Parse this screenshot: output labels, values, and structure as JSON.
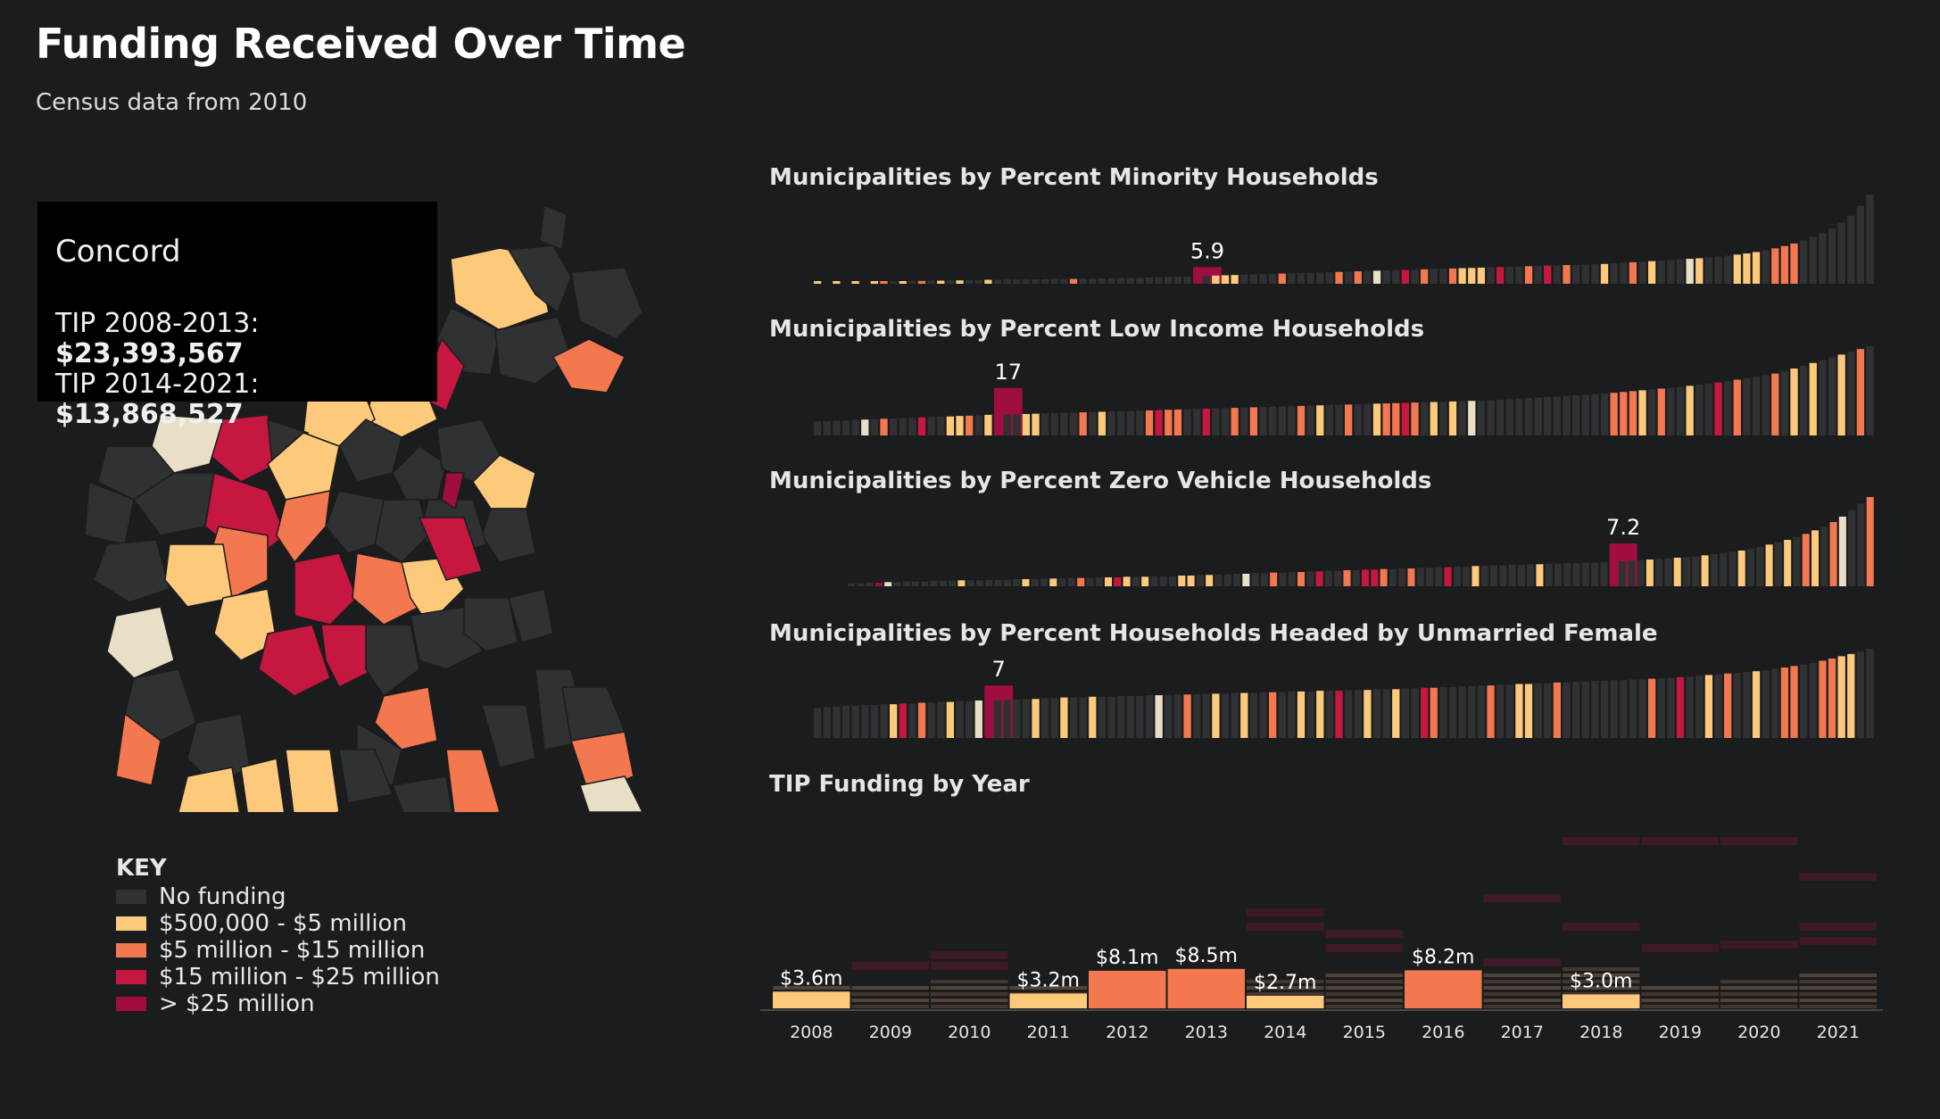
{
  "page": {
    "title": "Funding Received Over Time",
    "subtitle": "Census data from 2010"
  },
  "colors": {
    "background": "#1b1c1e",
    "no_funding": "#303133",
    "tier1": "#fdc97b",
    "tier2": "#f3774f",
    "tier3": "#c5173f",
    "tier4": "#9f0d42",
    "light": "#e9dec6"
  },
  "tooltip": {
    "town": "Concord",
    "line1_label": "TIP 2008-2013:",
    "line1_value": "$23,393,567",
    "line2_label": "TIP 2014-2021:",
    "line2_value": "$13,868,527"
  },
  "key": {
    "title": "KEY",
    "items": [
      {
        "label": "No funding",
        "color": "#303133"
      },
      {
        "label": "$500,000 - $5 million",
        "color": "#fdc97b"
      },
      {
        "label": "$5 million - $15 million",
        "color": "#f3774f"
      },
      {
        "label": "$15 million - $25 million",
        "color": "#c5173f"
      },
      {
        "label": "> $25 million",
        "color": "#9f0d42"
      }
    ]
  },
  "chart_data": [
    {
      "type": "bar",
      "title": "Municipalities by Percent Minority Households",
      "highlight_label": "5.9",
      "values": [
        0.5,
        0,
        0.6,
        0,
        0.7,
        0,
        0.8,
        0.7,
        0.9,
        0.9,
        1.0,
        1.0,
        1.1,
        1.1,
        1.2,
        1.2,
        1.3,
        1.3,
        1.4,
        1.4,
        1.5,
        1.5,
        1.5,
        1.6,
        1.6,
        1.7,
        1.7,
        1.7,
        1.8,
        1.8,
        1.9,
        1.9,
        2.0,
        2.0,
        2.1,
        2.2,
        2.3,
        2.4,
        2.5,
        2.6,
        5.9,
        2.8,
        2.9,
        3.0,
        3.1,
        3.2,
        3.3,
        3.4,
        3.5,
        3.6,
        3.7,
        3.8,
        3.9,
        4.0,
        4.1,
        4.2,
        4.3,
        4.4,
        4.5,
        4.6,
        4.7,
        4.8,
        4.9,
        5.0,
        5.1,
        5.2,
        5.3,
        5.4,
        5.5,
        5.6,
        5.7,
        5.8,
        5.9,
        6.0,
        6.1,
        6.2,
        6.3,
        6.4,
        6.5,
        6.6,
        6.7,
        6.8,
        6.9,
        7.0,
        7.2,
        7.4,
        7.6,
        7.8,
        8.0,
        8.2,
        8.4,
        8.6,
        8.8,
        9.0,
        9.3,
        9.6,
        9.9,
        10.3,
        10.7,
        11.2,
        11.8,
        12.5,
        13.3,
        14.2,
        15.3,
        16.5,
        17.9,
        19.5,
        21.5,
        24.0,
        27.5,
        31.5
      ],
      "colors": [
        "#fdc97b",
        "#303133",
        "#fdc97b",
        "#303133",
        "#fdc97b",
        "#303133",
        "#fdc97b",
        "#f3774f",
        "#303133",
        "#fdc97b",
        "#303133",
        "#f3774f",
        "#303133",
        "#fdc97b",
        "#303133",
        "#fdc97b",
        "#303133",
        "#303133",
        "#fdc97b",
        "#303133",
        "#303133",
        "#303133",
        "#303133",
        "#303133",
        "#303133",
        "#303133",
        "#303133",
        "#f3774f",
        "#303133",
        "#303133",
        "#303133",
        "#303133",
        "#303133",
        "#303133",
        "#303133",
        "#303133",
        "#303133",
        "#303133",
        "#303133",
        "#303133",
        "#9f0d42",
        "#303133",
        "#fdc97b",
        "#fdc97b",
        "#fdc97b",
        "#303133",
        "#303133",
        "#303133",
        "#303133",
        "#f3774f",
        "#303133",
        "#303133",
        "#303133",
        "#303133",
        "#303133",
        "#f3774f",
        "#303133",
        "#f3774f",
        "#303133",
        "#e9dec6",
        "#303133",
        "#303133",
        "#c5173f",
        "#303133",
        "#f3774f",
        "#303133",
        "#303133",
        "#f3774f",
        "#fdc97b",
        "#fdc97b",
        "#fdc97b",
        "#303133",
        "#c5173f",
        "#303133",
        "#303133",
        "#f3774f",
        "#303133",
        "#c5173f",
        "#303133",
        "#f3774f",
        "#303133",
        "#303133",
        "#303133",
        "#fdc97b",
        "#303133",
        "#303133",
        "#f3774f",
        "#303133",
        "#fdc97b",
        "#303133",
        "#303133",
        "#303133",
        "#e9dec6",
        "#fdc97b",
        "#303133",
        "#303133",
        "#303133",
        "#fdc97b",
        "#fdc97b",
        "#fdc97b",
        "#303133",
        "#f3774f",
        "#f3774f",
        "#f3774f",
        "#303133",
        "#303133",
        "#303133",
        "#303133",
        "#303133",
        "#303133",
        "#303133",
        "#303133"
      ],
      "highlight_index": 40
    },
    {
      "type": "bar",
      "title": "Municipalities by Percent Low Income Households",
      "highlight_label": "17",
      "values": [
        5.0,
        5.1,
        5.3,
        5.4,
        5.6,
        5.7,
        5.8,
        6.0,
        6.1,
        6.2,
        6.3,
        6.5,
        6.6,
        6.7,
        6.8,
        7.0,
        7.1,
        7.2,
        7.4,
        17,
        7.5,
        7.6,
        7.7,
        7.8,
        7.9,
        8.0,
        8.1,
        8.2,
        8.3,
        8.4,
        8.5,
        8.6,
        8.7,
        8.8,
        8.9,
        9.0,
        9.1,
        9.2,
        9.3,
        9.4,
        9.5,
        9.6,
        9.7,
        9.8,
        9.9,
        10.0,
        10.1,
        10.2,
        10.3,
        10.4,
        10.5,
        10.6,
        10.7,
        10.8,
        10.9,
        11.0,
        11.1,
        11.2,
        11.3,
        11.4,
        11.5,
        11.6,
        11.7,
        11.8,
        11.9,
        12.0,
        12.1,
        12.2,
        12.3,
        12.4,
        12.5,
        12.6,
        12.8,
        13.0,
        13.2,
        13.4,
        13.6,
        13.8,
        14.0,
        14.2,
        14.4,
        14.6,
        14.8,
        15.0,
        15.3,
        15.6,
        15.9,
        16.2,
        16.5,
        16.8,
        17.1,
        17.4,
        17.8,
        18.2,
        18.6,
        19.0,
        19.5,
        20.0,
        20.5,
        21.0,
        21.6,
        22.2,
        23.0,
        24.0,
        25.0,
        26.0,
        27.0,
        28.0,
        29.0,
        30.0,
        31.0,
        32.0
      ],
      "colors": [
        "#303133",
        "#303133",
        "#303133",
        "#303133",
        "#303133",
        "#e9dec6",
        "#303133",
        "#f3774f",
        "#303133",
        "#303133",
        "#303133",
        "#c5173f",
        "#303133",
        "#303133",
        "#fdc97b",
        "#fdc97b",
        "#f3774f",
        "#303133",
        "#fdc97b",
        "#9f0d42",
        "#303133",
        "#303133",
        "#fdc97b",
        "#fdc97b",
        "#303133",
        "#303133",
        "#303133",
        "#303133",
        "#f3774f",
        "#303133",
        "#fdc97b",
        "#303133",
        "#303133",
        "#303133",
        "#303133",
        "#f3774f",
        "#c5173f",
        "#f3774f",
        "#f3774f",
        "#303133",
        "#303133",
        "#c5173f",
        "#303133",
        "#303133",
        "#f3774f",
        "#303133",
        "#f3774f",
        "#303133",
        "#303133",
        "#303133",
        "#303133",
        "#f3774f",
        "#303133",
        "#fdc97b",
        "#303133",
        "#303133",
        "#f3774f",
        "#303133",
        "#303133",
        "#fdc97b",
        "#f3774f",
        "#f3774f",
        "#c5173f",
        "#f3774f",
        "#303133",
        "#fdc97b",
        "#303133",
        "#fdc97b",
        "#303133",
        "#e9dec6",
        "#303133",
        "#303133",
        "#303133",
        "#303133",
        "#303133",
        "#303133",
        "#303133",
        "#303133",
        "#303133",
        "#303133",
        "#303133",
        "#303133",
        "#303133",
        "#303133",
        "#f3774f",
        "#f3774f",
        "#f3774f",
        "#fdc97b",
        "#303133",
        "#f3774f",
        "#303133",
        "#303133",
        "#fdc97b",
        "#303133",
        "#303133",
        "#c5173f",
        "#303133",
        "#f3774f",
        "#303133",
        "#303133",
        "#303133",
        "#f3774f",
        "#303133",
        "#fdc97b",
        "#303133",
        "#fdc97b",
        "#303133",
        "#303133",
        "#fdc97b",
        "#303133",
        "#f3774f",
        "#303133"
      ],
      "highlight_index": 19
    },
    {
      "type": "bar",
      "title": "Municipalities by Percent Zero Vehicle Households",
      "highlight_label": "7.2",
      "values": [
        0.5,
        0.5,
        0.6,
        0.6,
        0.7,
        0.7,
        0.8,
        0.8,
        0.8,
        0.9,
        0.9,
        0.9,
        1.0,
        1.0,
        1.0,
        1.1,
        1.1,
        1.1,
        1.2,
        1.2,
        1.2,
        1.3,
        1.3,
        1.3,
        1.4,
        1.4,
        1.4,
        1.5,
        1.5,
        1.5,
        1.6,
        1.6,
        1.6,
        1.7,
        1.7,
        1.7,
        1.8,
        1.8,
        1.9,
        1.9,
        2.0,
        2.0,
        2.1,
        2.1,
        2.2,
        2.2,
        2.3,
        2.3,
        2.4,
        2.4,
        2.5,
        2.5,
        2.6,
        2.6,
        2.7,
        2.7,
        2.8,
        2.8,
        2.9,
        2.9,
        3.0,
        3.0,
        3.1,
        3.1,
        3.2,
        3.2,
        3.3,
        3.3,
        3.4,
        3.4,
        3.5,
        3.5,
        3.6,
        3.6,
        3.7,
        3.7,
        3.8,
        3.8,
        3.9,
        3.9,
        4.0,
        4.0,
        4.1,
        7.2,
        4.2,
        4.3,
        4.4,
        4.5,
        4.6,
        4.7,
        4.8,
        4.9,
        5.0,
        5.2,
        5.4,
        5.6,
        5.8,
        6.0,
        6.3,
        6.6,
        7.0,
        7.4,
        7.8,
        8.3,
        8.8,
        9.4,
        10.0,
        10.8,
        11.7,
        12.8,
        13.9,
        15.0
      ],
      "colors": [
        "#303133",
        "#303133",
        "#303133",
        "#9f0d42",
        "#e9dec6",
        "#303133",
        "#303133",
        "#303133",
        "#303133",
        "#303133",
        "#303133",
        "#303133",
        "#fdc97b",
        "#303133",
        "#303133",
        "#303133",
        "#303133",
        "#303133",
        "#303133",
        "#fdc97b",
        "#303133",
        "#303133",
        "#fdc97b",
        "#303133",
        "#303133",
        "#f3774f",
        "#303133",
        "#303133",
        "#fdc97b",
        "#c5173f",
        "#fdc97b",
        "#303133",
        "#fdc97b",
        "#303133",
        "#303133",
        "#303133",
        "#fdc97b",
        "#fdc97b",
        "#303133",
        "#fdc97b",
        "#303133",
        "#303133",
        "#303133",
        "#e9dec6",
        "#303133",
        "#303133",
        "#f3774f",
        "#303133",
        "#303133",
        "#f3774f",
        "#303133",
        "#c5173f",
        "#303133",
        "#303133",
        "#f3774f",
        "#303133",
        "#c5173f",
        "#c5173f",
        "#f3774f",
        "#303133",
        "#303133",
        "#f3774f",
        "#303133",
        "#303133",
        "#303133",
        "#c5173f",
        "#303133",
        "#303133",
        "#fdc97b",
        "#303133",
        "#303133",
        "#303133",
        "#303133",
        "#303133",
        "#303133",
        "#fdc97b",
        "#303133",
        "#303133",
        "#303133",
        "#303133",
        "#303133",
        "#303133",
        "#303133",
        "#9f0d42",
        "#303133",
        "#303133",
        "#303133",
        "#fdc97b",
        "#303133",
        "#303133",
        "#fdc97b",
        "#303133",
        "#303133",
        "#fdc97b",
        "#303133",
        "#303133",
        "#303133",
        "#fdc97b",
        "#303133",
        "#303133",
        "#fdc97b",
        "#303133",
        "#fdc97b",
        "#303133",
        "#f3774f",
        "#fdc97b",
        "#303133",
        "#f3774f",
        "#e9dec6",
        "#303133",
        "#303133",
        "#f3774f"
      ],
      "highlight_index": 83
    },
    {
      "type": "bar",
      "title": "Municipalities by Percent Households Headed by Unmarried Female",
      "highlight_label": "7",
      "values": [
        4.0,
        4.1,
        4.2,
        4.3,
        4.3,
        4.4,
        4.4,
        4.5,
        4.5,
        4.6,
        4.6,
        4.7,
        4.7,
        4.8,
        4.8,
        4.9,
        4.9,
        5.0,
        7,
        5.0,
        5.1,
        5.1,
        5.2,
        5.2,
        5.3,
        5.3,
        5.4,
        5.4,
        5.4,
        5.5,
        5.5,
        5.5,
        5.6,
        5.6,
        5.6,
        5.7,
        5.7,
        5.7,
        5.8,
        5.8,
        5.8,
        5.9,
        5.9,
        5.9,
        6.0,
        6.0,
        6.0,
        6.1,
        6.1,
        6.1,
        6.2,
        6.2,
        6.2,
        6.3,
        6.3,
        6.3,
        6.4,
        6.4,
        6.4,
        6.5,
        6.5,
        6.5,
        6.6,
        6.6,
        6.7,
        6.7,
        6.8,
        6.8,
        6.9,
        6.9,
        7.0,
        7.0,
        7.1,
        7.1,
        7.2,
        7.2,
        7.3,
        7.3,
        7.4,
        7.4,
        7.5,
        7.5,
        7.6,
        7.6,
        7.7,
        7.7,
        7.8,
        7.8,
        7.9,
        7.9,
        8.0,
        8.1,
        8.2,
        8.3,
        8.4,
        8.5,
        8.6,
        8.7,
        8.8,
        8.9,
        9.0,
        9.2,
        9.4,
        9.6,
        9.8,
        10.0,
        10.3,
        10.6,
        10.9,
        11.2,
        11.5,
        11.9
      ],
      "colors": [
        "#303133",
        "#303133",
        "#303133",
        "#303133",
        "#303133",
        "#303133",
        "#303133",
        "#303133",
        "#fdc97b",
        "#c5173f",
        "#303133",
        "#f3774f",
        "#303133",
        "#303133",
        "#fdc97b",
        "#303133",
        "#303133",
        "#e9dec6",
        "#9f0d42",
        "#303133",
        "#303133",
        "#303133",
        "#303133",
        "#fdc97b",
        "#303133",
        "#303133",
        "#fdc97b",
        "#303133",
        "#303133",
        "#fdc97b",
        "#303133",
        "#303133",
        "#303133",
        "#303133",
        "#303133",
        "#303133",
        "#e9dec6",
        "#303133",
        "#303133",
        "#f3774f",
        "#303133",
        "#303133",
        "#fdc97b",
        "#303133",
        "#303133",
        "#fdc97b",
        "#303133",
        "#303133",
        "#f3774f",
        "#303133",
        "#303133",
        "#fdc97b",
        "#303133",
        "#fdc97b",
        "#303133",
        "#c5173f",
        "#303133",
        "#303133",
        "#fdc97b",
        "#303133",
        "#303133",
        "#fdc97b",
        "#303133",
        "#303133",
        "#c5173f",
        "#f3774f",
        "#303133",
        "#303133",
        "#303133",
        "#303133",
        "#303133",
        "#f3774f",
        "#303133",
        "#303133",
        "#fdc97b",
        "#fdc97b",
        "#303133",
        "#303133",
        "#f3774f",
        "#303133",
        "#303133",
        "#303133",
        "#303133",
        "#303133",
        "#303133",
        "#303133",
        "#303133",
        "#303133",
        "#f3774f",
        "#303133",
        "#303133",
        "#c5173f",
        "#303133",
        "#303133",
        "#fdc97b",
        "#303133",
        "#f3774f",
        "#303133",
        "#303133",
        "#fdc97b",
        "#303133",
        "#303133",
        "#f3774f",
        "#f3774f",
        "#303133",
        "#303133",
        "#f3774f",
        "#f3774f",
        "#fdc97b",
        "#fdc97b"
      ],
      "highlight_index": 18
    },
    {
      "type": "bar",
      "title": "TIP Funding by Year",
      "categories": [
        "2008",
        "2009",
        "2010",
        "2011",
        "2012",
        "2013",
        "2014",
        "2015",
        "2016",
        "2017",
        "2018",
        "2019",
        "2020",
        "2021"
      ],
      "values": [
        3.6,
        null,
        null,
        3.2,
        8.1,
        8.5,
        2.7,
        null,
        8.2,
        null,
        3.0,
        null,
        null,
        null
      ],
      "value_labels": [
        "$3.6m",
        "",
        "",
        "$3.2m",
        "$8.1m",
        "$8.5m",
        "$2.7m",
        "",
        "$8.2m",
        "",
        "$3.0m",
        "",
        "",
        ""
      ],
      "colors": [
        "#fdc97b",
        "#303133",
        "#303133",
        "#fdc97b",
        "#f3774f",
        "#f3774f",
        "#fdc97b",
        "#303133",
        "#f3774f",
        "#303133",
        "#fdc97b",
        "#303133",
        "#303133",
        "#303133"
      ],
      "stack_heights": [
        4,
        4,
        5,
        4,
        5,
        5,
        5,
        6,
        4,
        6,
        7,
        4,
        5,
        6
      ],
      "faint_marks": [
        [],
        [
          0.65
        ],
        [
          0.8,
          0.65
        ],
        [],
        [],
        [],
        [
          1.4,
          1.2
        ],
        [
          1.1,
          0.9
        ],
        [],
        [
          1.6,
          0.7
        ],
        [
          2.4,
          1.2
        ],
        [
          2.4,
          0.9
        ],
        [
          2.4,
          0.95
        ],
        [
          1.9,
          1.2,
          1.0
        ]
      ]
    }
  ]
}
